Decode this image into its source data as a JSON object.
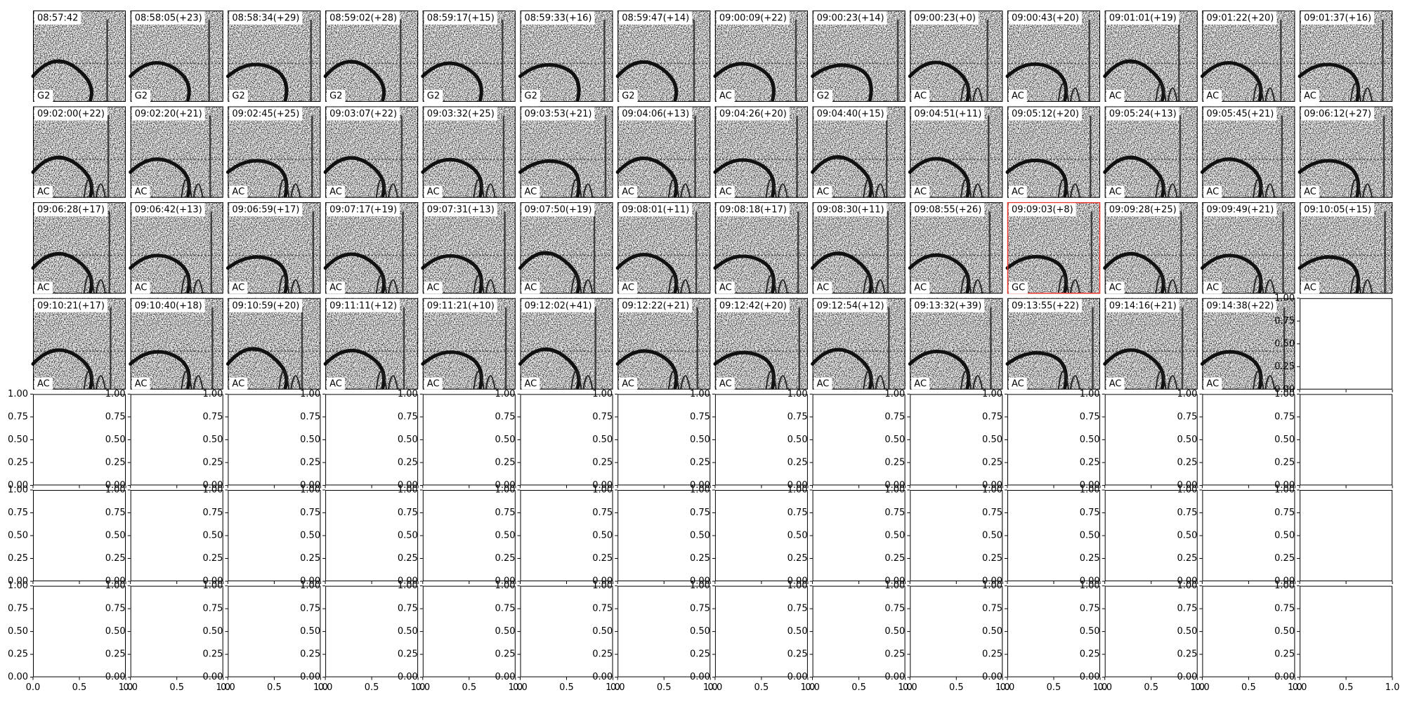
{
  "panels": [
    {
      "title": "08:57:42",
      "label": "G2"
    },
    {
      "title": "08:58:05(+23)",
      "label": "G2"
    },
    {
      "title": "08:58:34(+29)",
      "label": "G2"
    },
    {
      "title": "08:59:02(+28)",
      "label": "G2"
    },
    {
      "title": "08:59:17(+15)",
      "label": "G2"
    },
    {
      "title": "08:59:33(+16)",
      "label": "G2"
    },
    {
      "title": "08:59:47(+14)",
      "label": "G2"
    },
    {
      "title": "09:00:09(+22)",
      "label": "AC"
    },
    {
      "title": "09:00:23(+14)",
      "label": "G2"
    },
    {
      "title": "09:00:23(+0)",
      "label": "AC"
    },
    {
      "title": "09:00:43(+20)",
      "label": "AC"
    },
    {
      "title": "09:01:01(+19)",
      "label": "AC"
    },
    {
      "title": "09:01:22(+20)",
      "label": "AC"
    },
    {
      "title": "09:01:37(+16)",
      "label": "AC"
    },
    {
      "title": "09:02:00(+22)",
      "label": "AC"
    },
    {
      "title": "09:02:20(+21)",
      "label": "AC"
    },
    {
      "title": "09:02:45(+25)",
      "label": "AC"
    },
    {
      "title": "09:03:07(+22)",
      "label": "AC"
    },
    {
      "title": "09:03:32(+25)",
      "label": "AC"
    },
    {
      "title": "09:03:53(+21)",
      "label": "AC"
    },
    {
      "title": "09:04:06(+13)",
      "label": "AC"
    },
    {
      "title": "09:04:26(+20)",
      "label": "AC"
    },
    {
      "title": "09:04:40(+15)",
      "label": "AC"
    },
    {
      "title": "09:04:51(+11)",
      "label": "AC"
    },
    {
      "title": "09:05:12(+20)",
      "label": "AC"
    },
    {
      "title": "09:05:24(+13)",
      "label": "AC"
    },
    {
      "title": "09:05:45(+21)",
      "label": "AC"
    },
    {
      "title": "09:06:12(+27)",
      "label": "AC"
    },
    {
      "title": "09:06:28(+17)",
      "label": "AC"
    },
    {
      "title": "09:06:42(+13)",
      "label": "AC"
    },
    {
      "title": "09:06:59(+17)",
      "label": "AC"
    },
    {
      "title": "09:07:17(+19)",
      "label": "AC"
    },
    {
      "title": "09:07:31(+13)",
      "label": "AC"
    },
    {
      "title": "09:07:50(+19)",
      "label": "AC"
    },
    {
      "title": "09:08:01(+11)",
      "label": "AC"
    },
    {
      "title": "09:08:18(+17)",
      "label": "AC"
    },
    {
      "title": "09:08:30(+11)",
      "label": "AC"
    },
    {
      "title": "09:08:55(+26)",
      "label": "AC"
    },
    {
      "title": "09:09:03(+8)",
      "label": "GC",
      "border": "#e8332a"
    },
    {
      "title": "09:09:28(+25)",
      "label": "AC"
    },
    {
      "title": "09:09:49(+21)",
      "label": "AC"
    },
    {
      "title": "09:10:05(+15)",
      "label": "AC"
    },
    {
      "title": "09:10:21(+17)",
      "label": "AC"
    },
    {
      "title": "09:10:40(+18)",
      "label": "AC"
    },
    {
      "title": "09:10:59(+20)",
      "label": "AC"
    },
    {
      "title": "09:11:11(+12)",
      "label": "AC"
    },
    {
      "title": "09:11:21(+10)",
      "label": "AC"
    },
    {
      "title": "09:12:02(+41)",
      "label": "AC"
    },
    {
      "title": "09:12:22(+21)",
      "label": "AC"
    },
    {
      "title": "09:12:42(+20)",
      "label": "AC"
    },
    {
      "title": "09:12:54(+12)",
      "label": "AC"
    },
    {
      "title": "09:13:32(+39)",
      "label": "AC"
    },
    {
      "title": "09:13:55(+22)",
      "label": "AC"
    },
    {
      "title": "09:14:16(+21)",
      "label": "AC"
    },
    {
      "title": "09:14:38(+22)",
      "label": "AC"
    }
  ],
  "empty_axes": {
    "yticks": [
      {
        "value": 0,
        "label": "0.00"
      },
      {
        "value": 0.25,
        "label": "0.25"
      },
      {
        "value": 0.5,
        "label": "0.50"
      },
      {
        "value": 0.75,
        "label": "0.75"
      },
      {
        "value": 1,
        "label": "1.00"
      }
    ],
    "xticks": [
      {
        "value": 0,
        "label": "0.0"
      },
      {
        "value": 0.5,
        "label": "0.5"
      },
      {
        "value": 1,
        "label": "1.0"
      }
    ]
  }
}
